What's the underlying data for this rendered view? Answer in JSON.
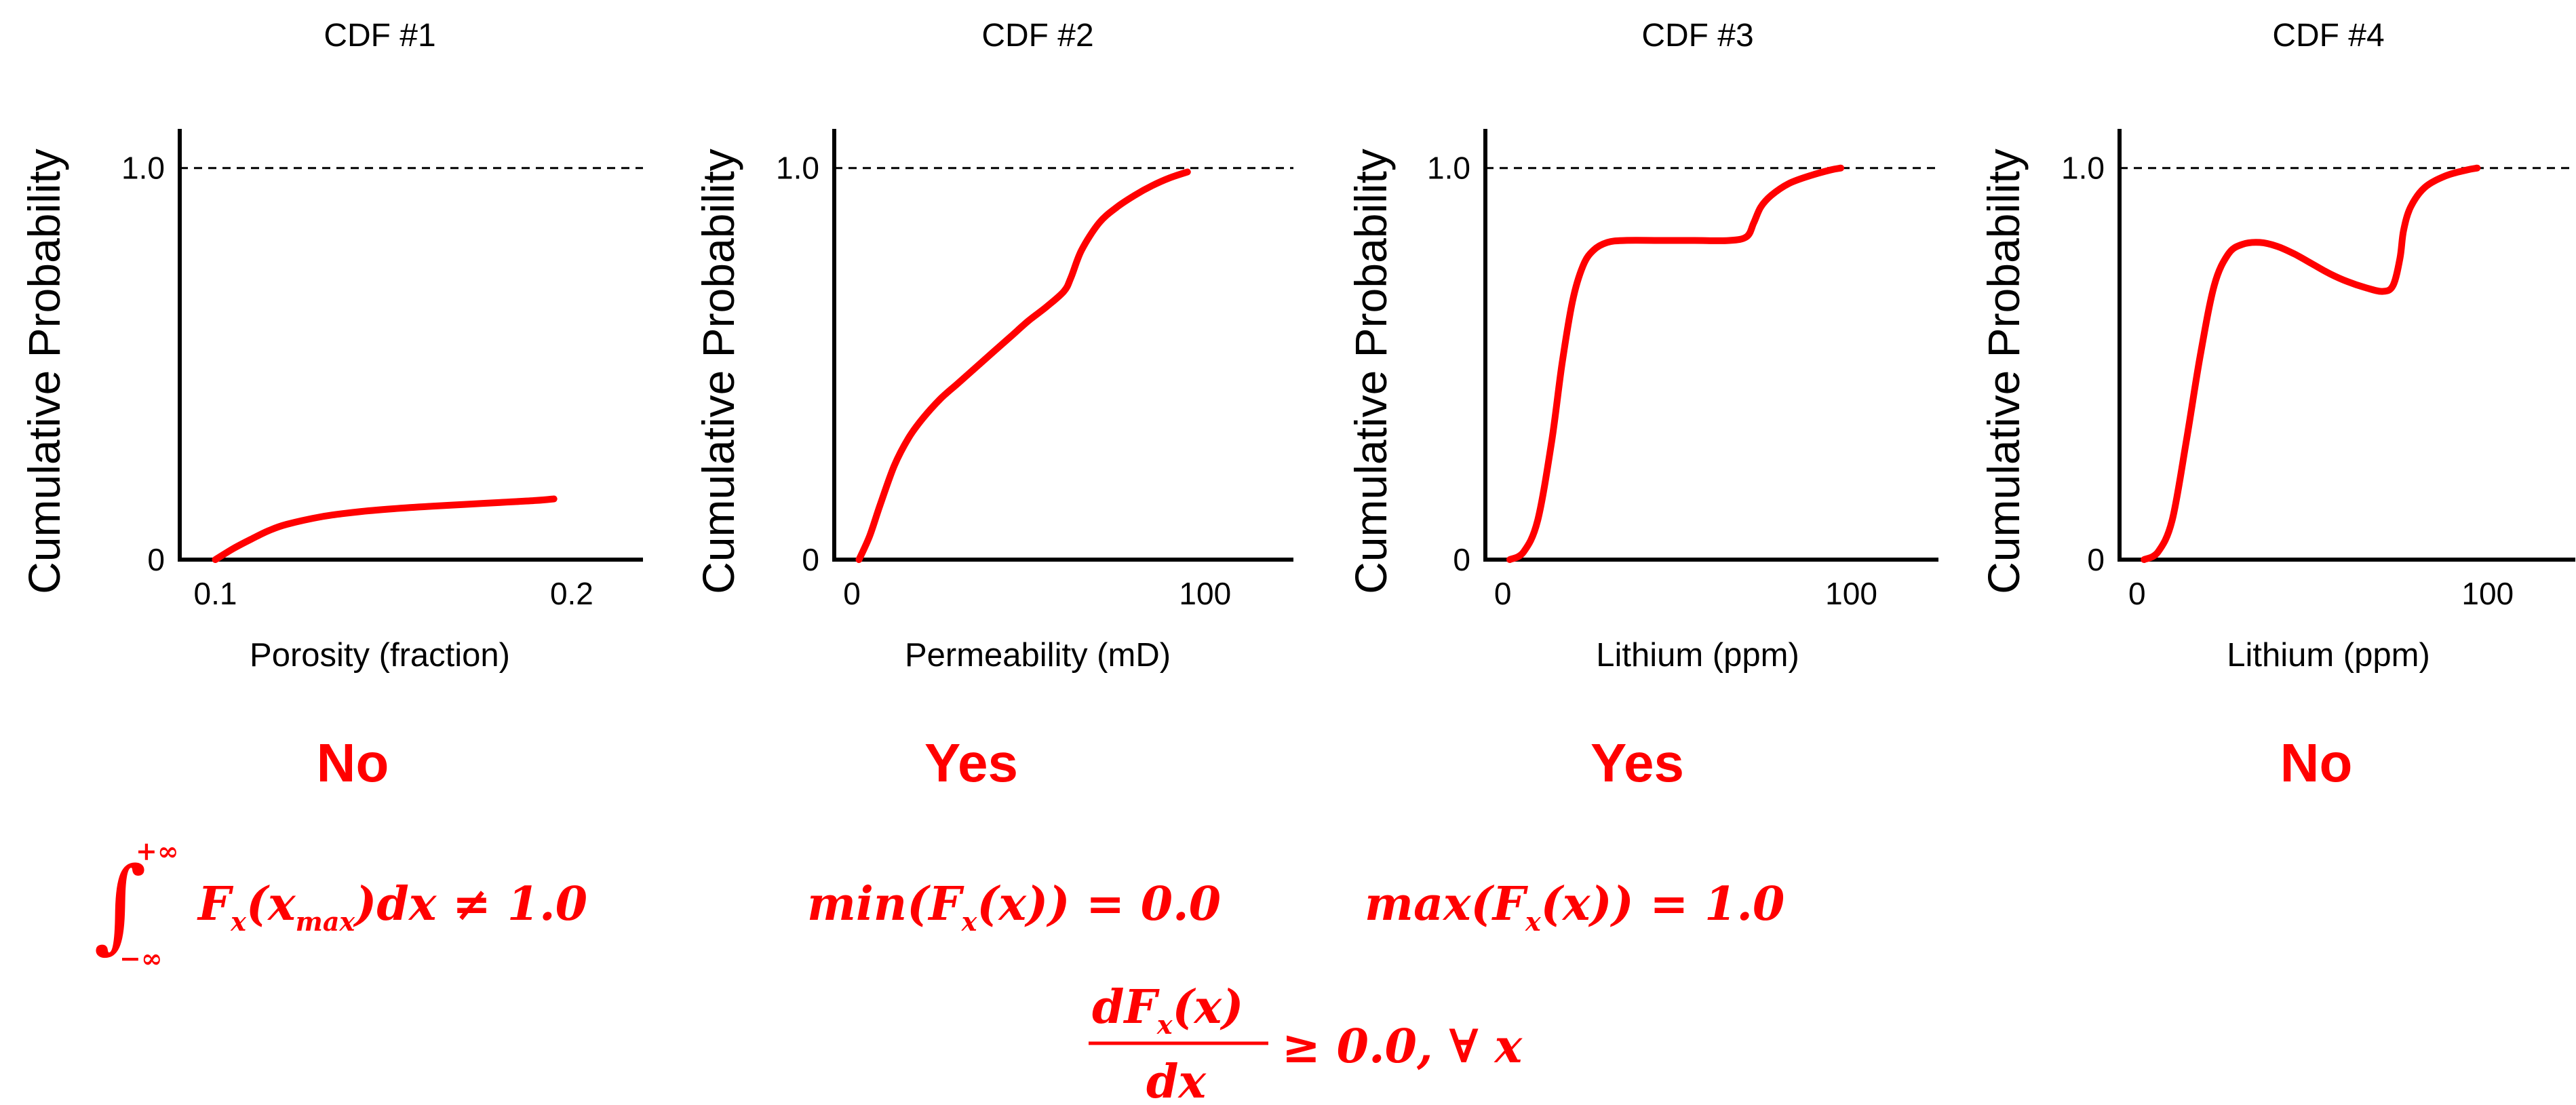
{
  "colors": {
    "accent": "#ff0000",
    "axis": "#000000",
    "background": "#ffffff"
  },
  "chart_data": [
    {
      "type": "line",
      "title": "CDF #1",
      "xlabel": "Porosity (fraction)",
      "ylabel": "Cumulative Probability",
      "xlim": [
        0.09,
        0.22
      ],
      "ylim": [
        0,
        1.1
      ],
      "xticks": [
        0.1,
        0.2
      ],
      "xtick_labels": [
        "0.1",
        "0.2"
      ],
      "yticks": [
        0,
        1.0
      ],
      "ytick_labels": [
        "0",
        "1.0"
      ],
      "ref_line_y": 1.0,
      "series": [
        {
          "name": "CDF",
          "x": [
            0.1,
            0.105,
            0.11,
            0.115,
            0.12,
            0.13,
            0.14,
            0.15,
            0.16,
            0.17,
            0.18,
            0.19,
            0.195
          ],
          "y": [
            0.0,
            0.028,
            0.052,
            0.074,
            0.09,
            0.11,
            0.122,
            0.13,
            0.136,
            0.141,
            0.146,
            0.151,
            0.155
          ]
        }
      ],
      "verdict": "No",
      "formula": {
        "lower": "−∞",
        "upper": "+∞",
        "body": "F",
        "sub": "x",
        "args": "(x",
        "args_sub": "max",
        "rest": ")dx ≠ 1.0"
      }
    },
    {
      "type": "line",
      "title": "CDF #2",
      "xlabel": "Permeability (mD)",
      "ylabel": "Cumulative Probability",
      "xlim": [
        -5,
        125
      ],
      "ylim": [
        0,
        1.1
      ],
      "xticks": [
        0,
        100
      ],
      "xtick_labels": [
        "0",
        "100"
      ],
      "yticks": [
        0,
        1.0
      ],
      "ytick_labels": [
        "0",
        "1.0"
      ],
      "ref_line_y": 1.0,
      "series": [
        {
          "name": "CDF",
          "x": [
            2,
            5,
            8,
            12,
            16,
            20,
            25,
            30,
            35,
            40,
            45,
            50,
            55,
            60,
            62,
            65,
            70,
            75,
            80,
            85,
            90,
            95
          ],
          "y": [
            0.0,
            0.06,
            0.14,
            0.24,
            0.31,
            0.36,
            0.41,
            0.45,
            0.49,
            0.53,
            0.57,
            0.61,
            0.645,
            0.685,
            0.72,
            0.79,
            0.86,
            0.9,
            0.93,
            0.955,
            0.975,
            0.99
          ]
        }
      ],
      "verdict": "Yes",
      "formula": {
        "text_before": "min(F",
        "sub": "x",
        "text_after": "(x)) = 0.0"
      }
    },
    {
      "type": "line",
      "title": "CDF #3",
      "xlabel": "Lithium (ppm)",
      "ylabel": "Cumulative Probability",
      "xlim": [
        -5,
        125
      ],
      "ylim": [
        0,
        1.1
      ],
      "xticks": [
        0,
        100
      ],
      "xtick_labels": [
        "0",
        "100"
      ],
      "yticks": [
        0,
        1.0
      ],
      "ytick_labels": [
        "0",
        "1.0"
      ],
      "ref_line_y": 1.0,
      "series": [
        {
          "name": "CDF",
          "x": [
            2,
            6,
            10,
            14,
            17,
            20,
            23,
            26,
            30,
            35,
            45,
            55,
            65,
            70,
            72,
            74,
            77,
            82,
            88,
            94,
            97
          ],
          "y": [
            0.0,
            0.02,
            0.1,
            0.3,
            0.5,
            0.66,
            0.75,
            0.79,
            0.81,
            0.815,
            0.815,
            0.815,
            0.815,
            0.825,
            0.86,
            0.9,
            0.93,
            0.96,
            0.98,
            0.995,
            1.0
          ]
        }
      ],
      "verdict": "Yes",
      "formula": {
        "text_before": "max(F",
        "sub": "x",
        "text_after": "(x)) = 1.0"
      }
    },
    {
      "type": "line",
      "title": "CDF #4",
      "xlabel": "Lithium (ppm)",
      "ylabel": "Cumulative Probability",
      "xlim": [
        -5,
        125
      ],
      "ylim": [
        0,
        1.1
      ],
      "xticks": [
        0,
        100
      ],
      "xtick_labels": [
        "0",
        "100"
      ],
      "yticks": [
        0,
        1.0
      ],
      "ytick_labels": [
        "0",
        "1.0"
      ],
      "ref_line_y": 1.0,
      "series": [
        {
          "name": "CDF",
          "x": [
            2,
            6,
            10,
            14,
            18,
            22,
            26,
            30,
            35,
            40,
            45,
            50,
            55,
            60,
            65,
            70,
            73,
            75,
            76,
            78,
            82,
            88,
            94,
            97
          ],
          "y": [
            0.0,
            0.02,
            0.1,
            0.3,
            0.52,
            0.7,
            0.78,
            0.805,
            0.81,
            0.8,
            0.78,
            0.755,
            0.73,
            0.71,
            0.695,
            0.685,
            0.7,
            0.77,
            0.84,
            0.9,
            0.95,
            0.98,
            0.995,
            1.0
          ]
        }
      ],
      "verdict": "No"
    }
  ],
  "bottom_formula": {
    "numerator": "dF",
    "numerator_sub": "x",
    "numerator_rest": "(x)",
    "denominator": "dx",
    "rhs": "≥ 0.0, ∀ x"
  }
}
